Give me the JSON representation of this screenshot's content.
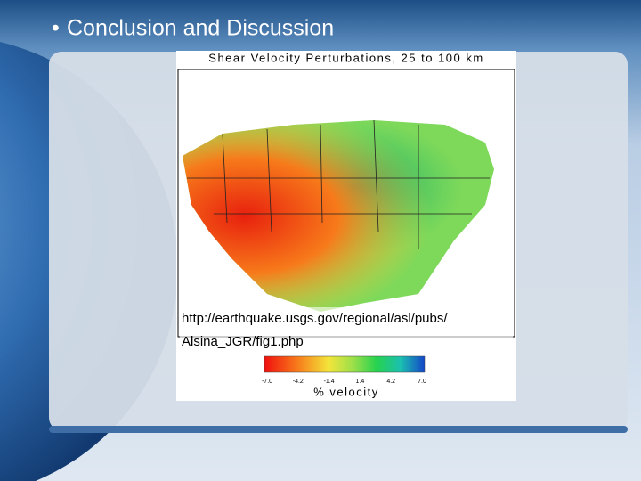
{
  "header": {
    "title": "Conclusion and Discussion"
  },
  "figure": {
    "title": "Shear Velocity Perturbations, 25 to 100 km",
    "source_lines": [
      "http://earthquake.usgs.gov/regional/asl/pubs/",
      "Alsina_JGR/fig1.php"
    ],
    "colorbar": {
      "ticks": [
        "-7.0",
        "-4.2",
        "-1.4",
        "1.4",
        "4.2",
        "7.0"
      ],
      "label": "% velocity"
    }
  }
}
